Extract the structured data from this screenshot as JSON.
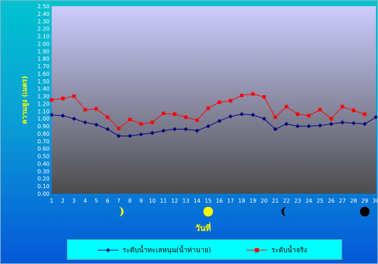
{
  "chart_data": {
    "type": "line",
    "title": "",
    "xlabel": "วันที่",
    "ylabel": "ความสูง (เมตร)",
    "ylim": [
      0,
      2.5
    ],
    "ytick_step": 0.1,
    "categories": [
      1,
      2,
      3,
      4,
      5,
      6,
      7,
      8,
      9,
      10,
      11,
      12,
      13,
      14,
      15,
      16,
      17,
      18,
      19,
      20,
      21,
      22,
      23,
      24,
      25,
      26,
      27,
      28,
      29,
      30
    ],
    "series": [
      {
        "name": "ระดับน้ำทะเลหนุน(น้ำท่านาย)",
        "color": "#000080",
        "marker": "diamond",
        "values": [
          1.05,
          1.04,
          1.0,
          0.95,
          0.92,
          0.86,
          0.77,
          0.77,
          0.79,
          0.81,
          0.84,
          0.86,
          0.86,
          0.84,
          0.9,
          0.97,
          1.03,
          1.06,
          1.05,
          1.0,
          0.86,
          0.93,
          0.9,
          0.9,
          0.91,
          0.93,
          0.95,
          0.94,
          0.93,
          1.02
        ]
      },
      {
        "name": "ระดับน้ำจริง",
        "color": "#ff0000",
        "marker": "square",
        "values": [
          1.25,
          1.27,
          1.3,
          1.12,
          1.13,
          1.02,
          0.87,
          0.99,
          0.93,
          0.95,
          1.07,
          1.06,
          1.02,
          0.98,
          1.14,
          1.22,
          1.24,
          1.31,
          1.33,
          1.29,
          1.02,
          1.16,
          1.06,
          1.04,
          1.12,
          1.0,
          1.16,
          1.11,
          1.06,
          null
        ]
      }
    ],
    "moon_phases": [
      {
        "day": 7,
        "phase": "first-quarter"
      },
      {
        "day": 15,
        "phase": "full-moon"
      },
      {
        "day": 22,
        "phase": "last-quarter"
      },
      {
        "day": 29,
        "phase": "new-moon"
      }
    ],
    "legend_position": "bottom",
    "grid": false,
    "colors": {
      "plot_top": "#ccccff",
      "plot_bottom": "#4c4c4c",
      "moon": "#ffff00",
      "new_moon": "#000000"
    }
  }
}
